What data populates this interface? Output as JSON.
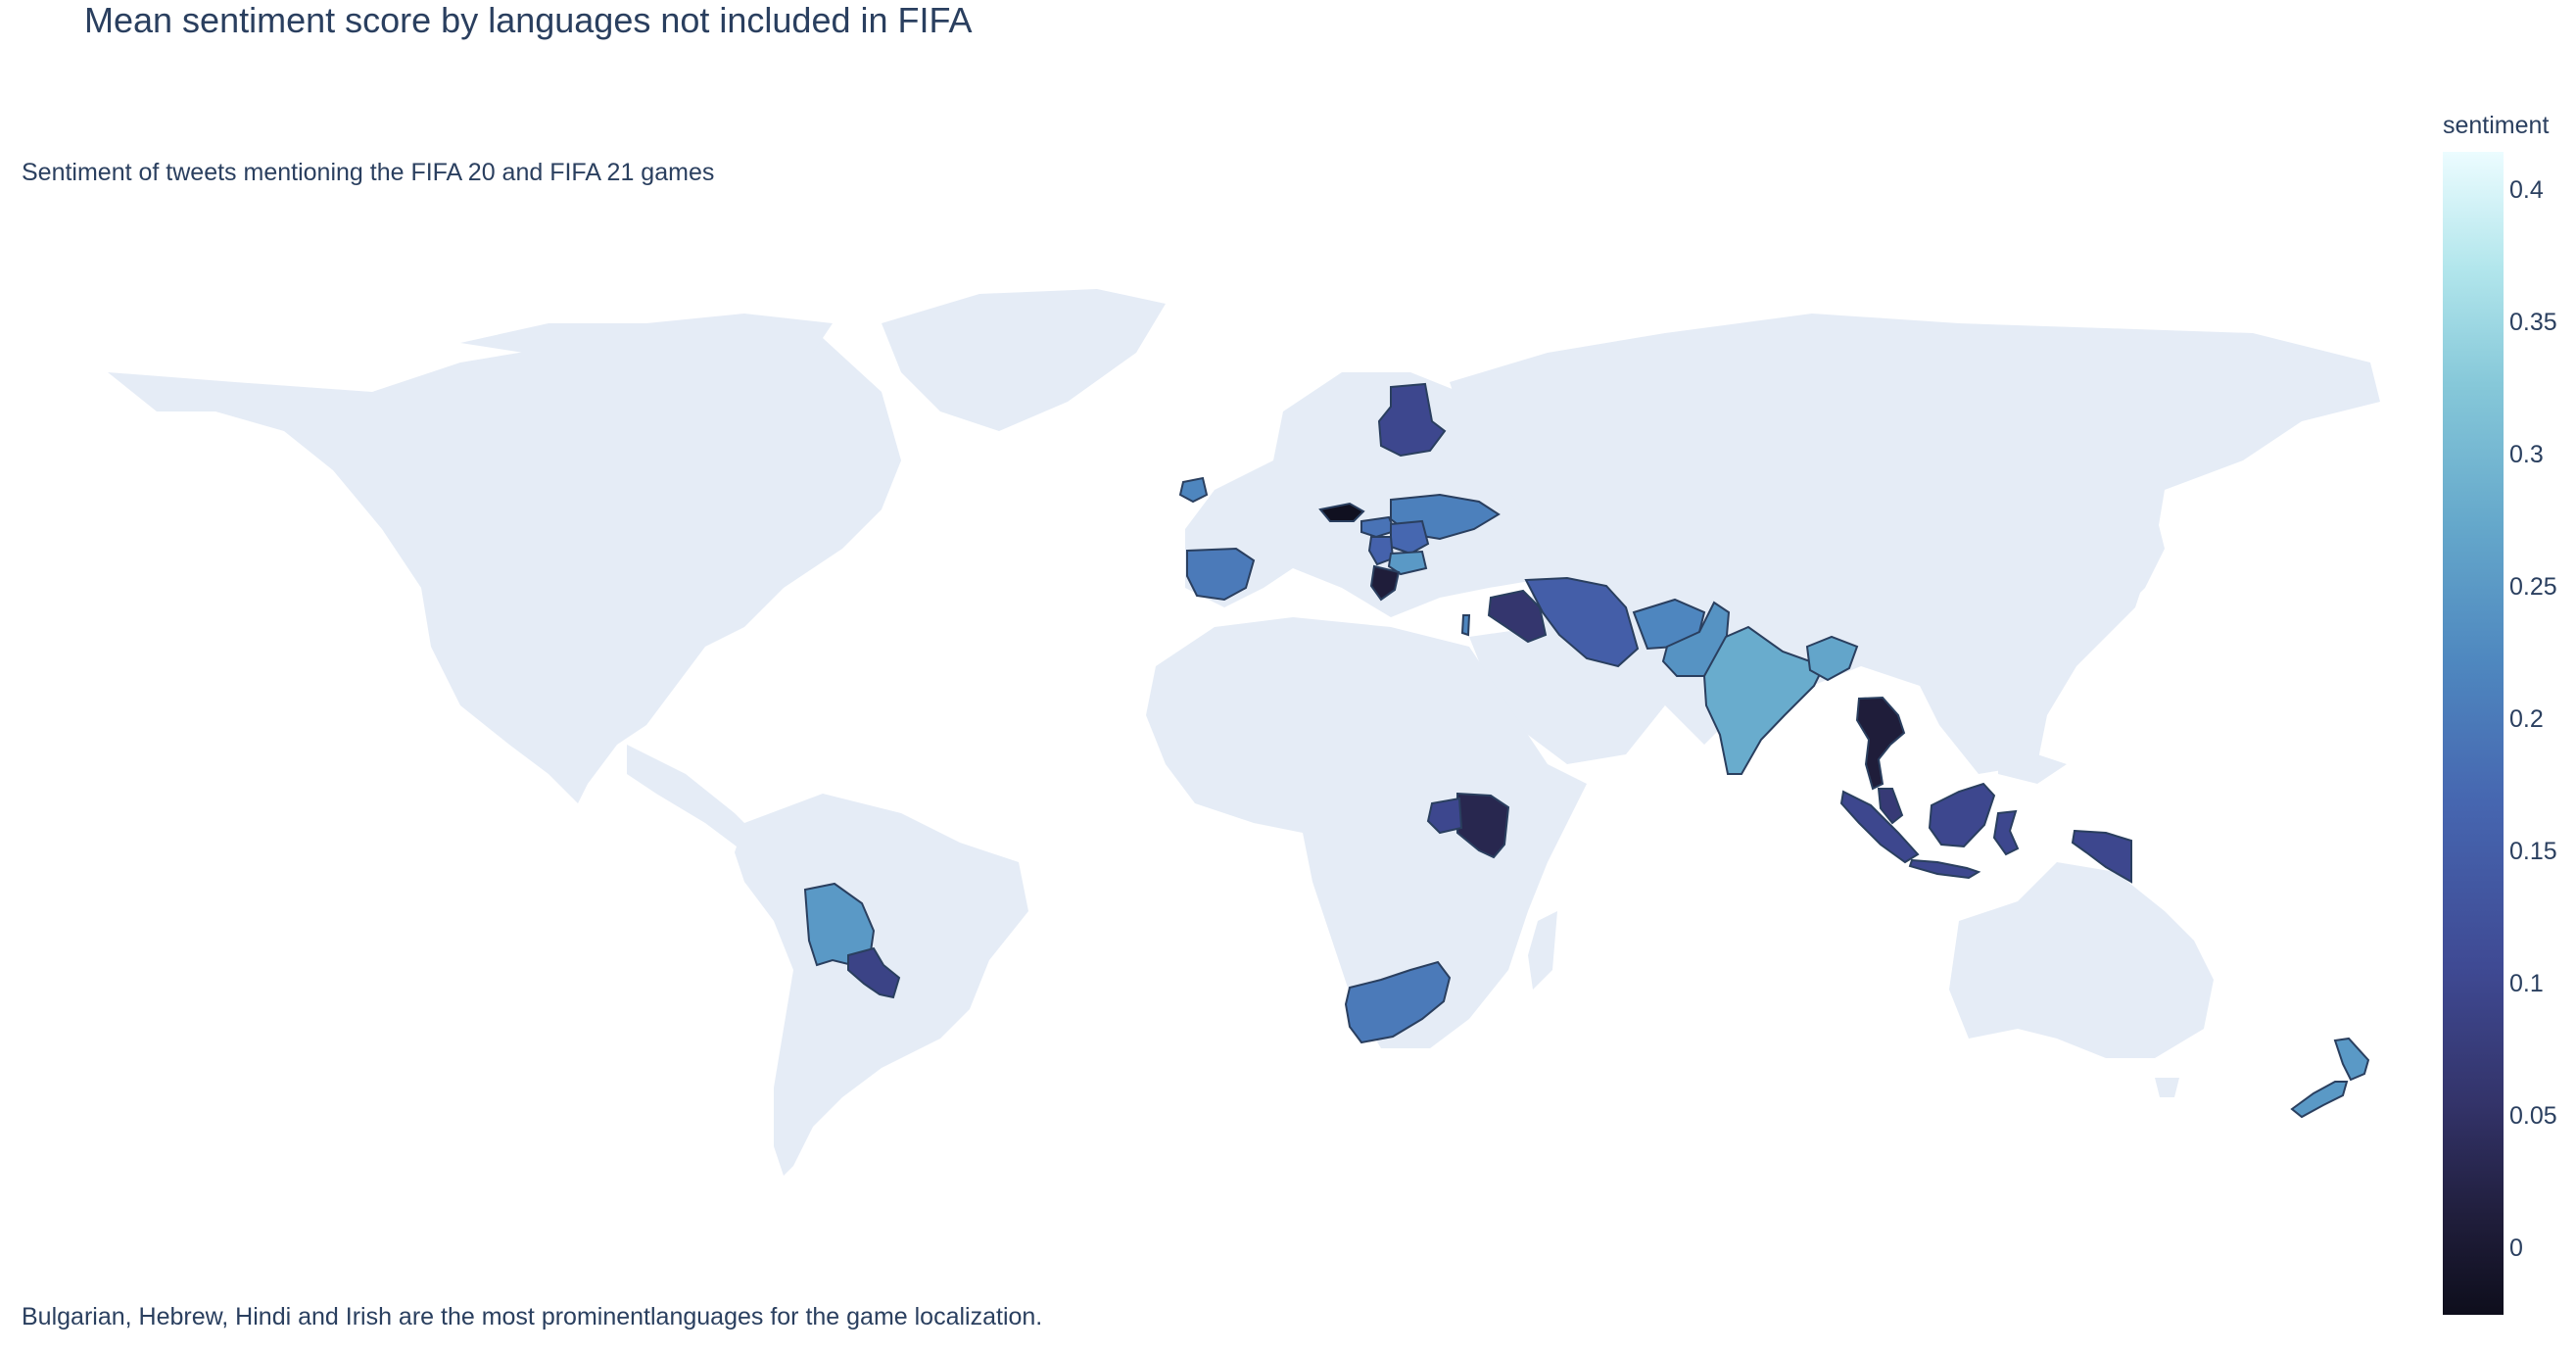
{
  "title": "Mean sentiment score by languages not included in FIFA",
  "subtitle": "Sentiment of tweets mentioning the FIFA 20 and FIFA 21 games",
  "footnote": "Bulgarian, Hebrew, Hindi and Irish are the most prominentlanguages for the game localization.",
  "colorbar": {
    "title": "sentiment",
    "ticks": [
      "0.4",
      "0.35",
      "0.3",
      "0.25",
      "0.2",
      "0.15",
      "0.1",
      "0.05",
      "0"
    ],
    "range": [
      -0.025,
      0.415
    ],
    "colorscale": "ice"
  },
  "colors": {
    "land": "#e5ecf6",
    "border": "#2a3f5f",
    "text": "#2a3f5f"
  },
  "map_data": {
    "type": "choropleth",
    "projection": "equirectangular",
    "regions": [
      {
        "name": "Finland",
        "value": 0.1
      },
      {
        "name": "Ireland",
        "value": 0.22
      },
      {
        "name": "Czechia",
        "value": -0.02
      },
      {
        "name": "Ukraine",
        "value": 0.21
      },
      {
        "name": "Hungary",
        "value": 0.19
      },
      {
        "name": "Romania",
        "value": 0.17
      },
      {
        "name": "Serbia",
        "value": 0.16
      },
      {
        "name": "Bulgaria",
        "value": 0.25
      },
      {
        "name": "Greece",
        "value": 0.01
      },
      {
        "name": "Spain",
        "value": 0.2
      },
      {
        "name": "Israel",
        "value": 0.22
      },
      {
        "name": "Iraq",
        "value": 0.06
      },
      {
        "name": "Iran",
        "value": 0.15
      },
      {
        "name": "Afghanistan",
        "value": 0.22
      },
      {
        "name": "Pakistan",
        "value": 0.24
      },
      {
        "name": "India",
        "value": 0.28
      },
      {
        "name": "Bangladesh",
        "value": 0.27
      },
      {
        "name": "Thailand",
        "value": 0.01
      },
      {
        "name": "Malaysia",
        "value": 0.07
      },
      {
        "name": "Indonesia",
        "value": 0.1
      },
      {
        "name": "Kenya",
        "value": 0.03
      },
      {
        "name": "Uganda",
        "value": 0.1
      },
      {
        "name": "South Africa",
        "value": 0.2
      },
      {
        "name": "Bolivia",
        "value": 0.25
      },
      {
        "name": "Paraguay",
        "value": 0.09
      },
      {
        "name": "New Zealand",
        "value": 0.25
      }
    ]
  }
}
